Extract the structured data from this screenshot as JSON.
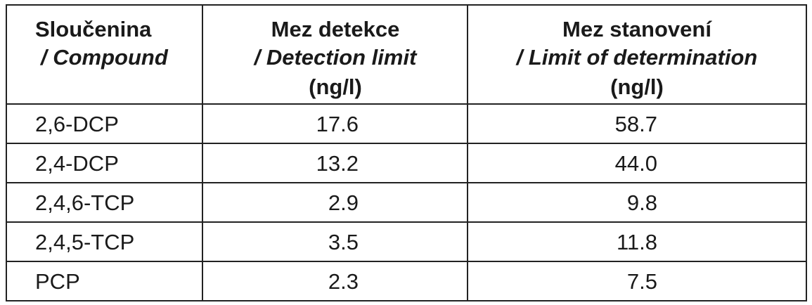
{
  "table": {
    "header": [
      {
        "line1": "Sloučenina",
        "line2": "/ Compound"
      },
      {
        "line1": "Mez detekce",
        "line2": "/ Detection limit",
        "line3": "(ng/l)"
      },
      {
        "line1": "Mez stanovení",
        "line2": "/ Limit of determination",
        "line3": "(ng/l)"
      }
    ],
    "rows": [
      [
        "2,6-DCP",
        "17.6",
        "58.7"
      ],
      [
        "2,4-DCP",
        "13.2",
        "44.0"
      ],
      [
        "2,4,6-TCP",
        "2.9",
        "9.8"
      ],
      [
        "2,4,5-TCP",
        "3.5",
        "11.8"
      ],
      [
        "PCP",
        "2.3",
        "7.5"
      ]
    ]
  }
}
